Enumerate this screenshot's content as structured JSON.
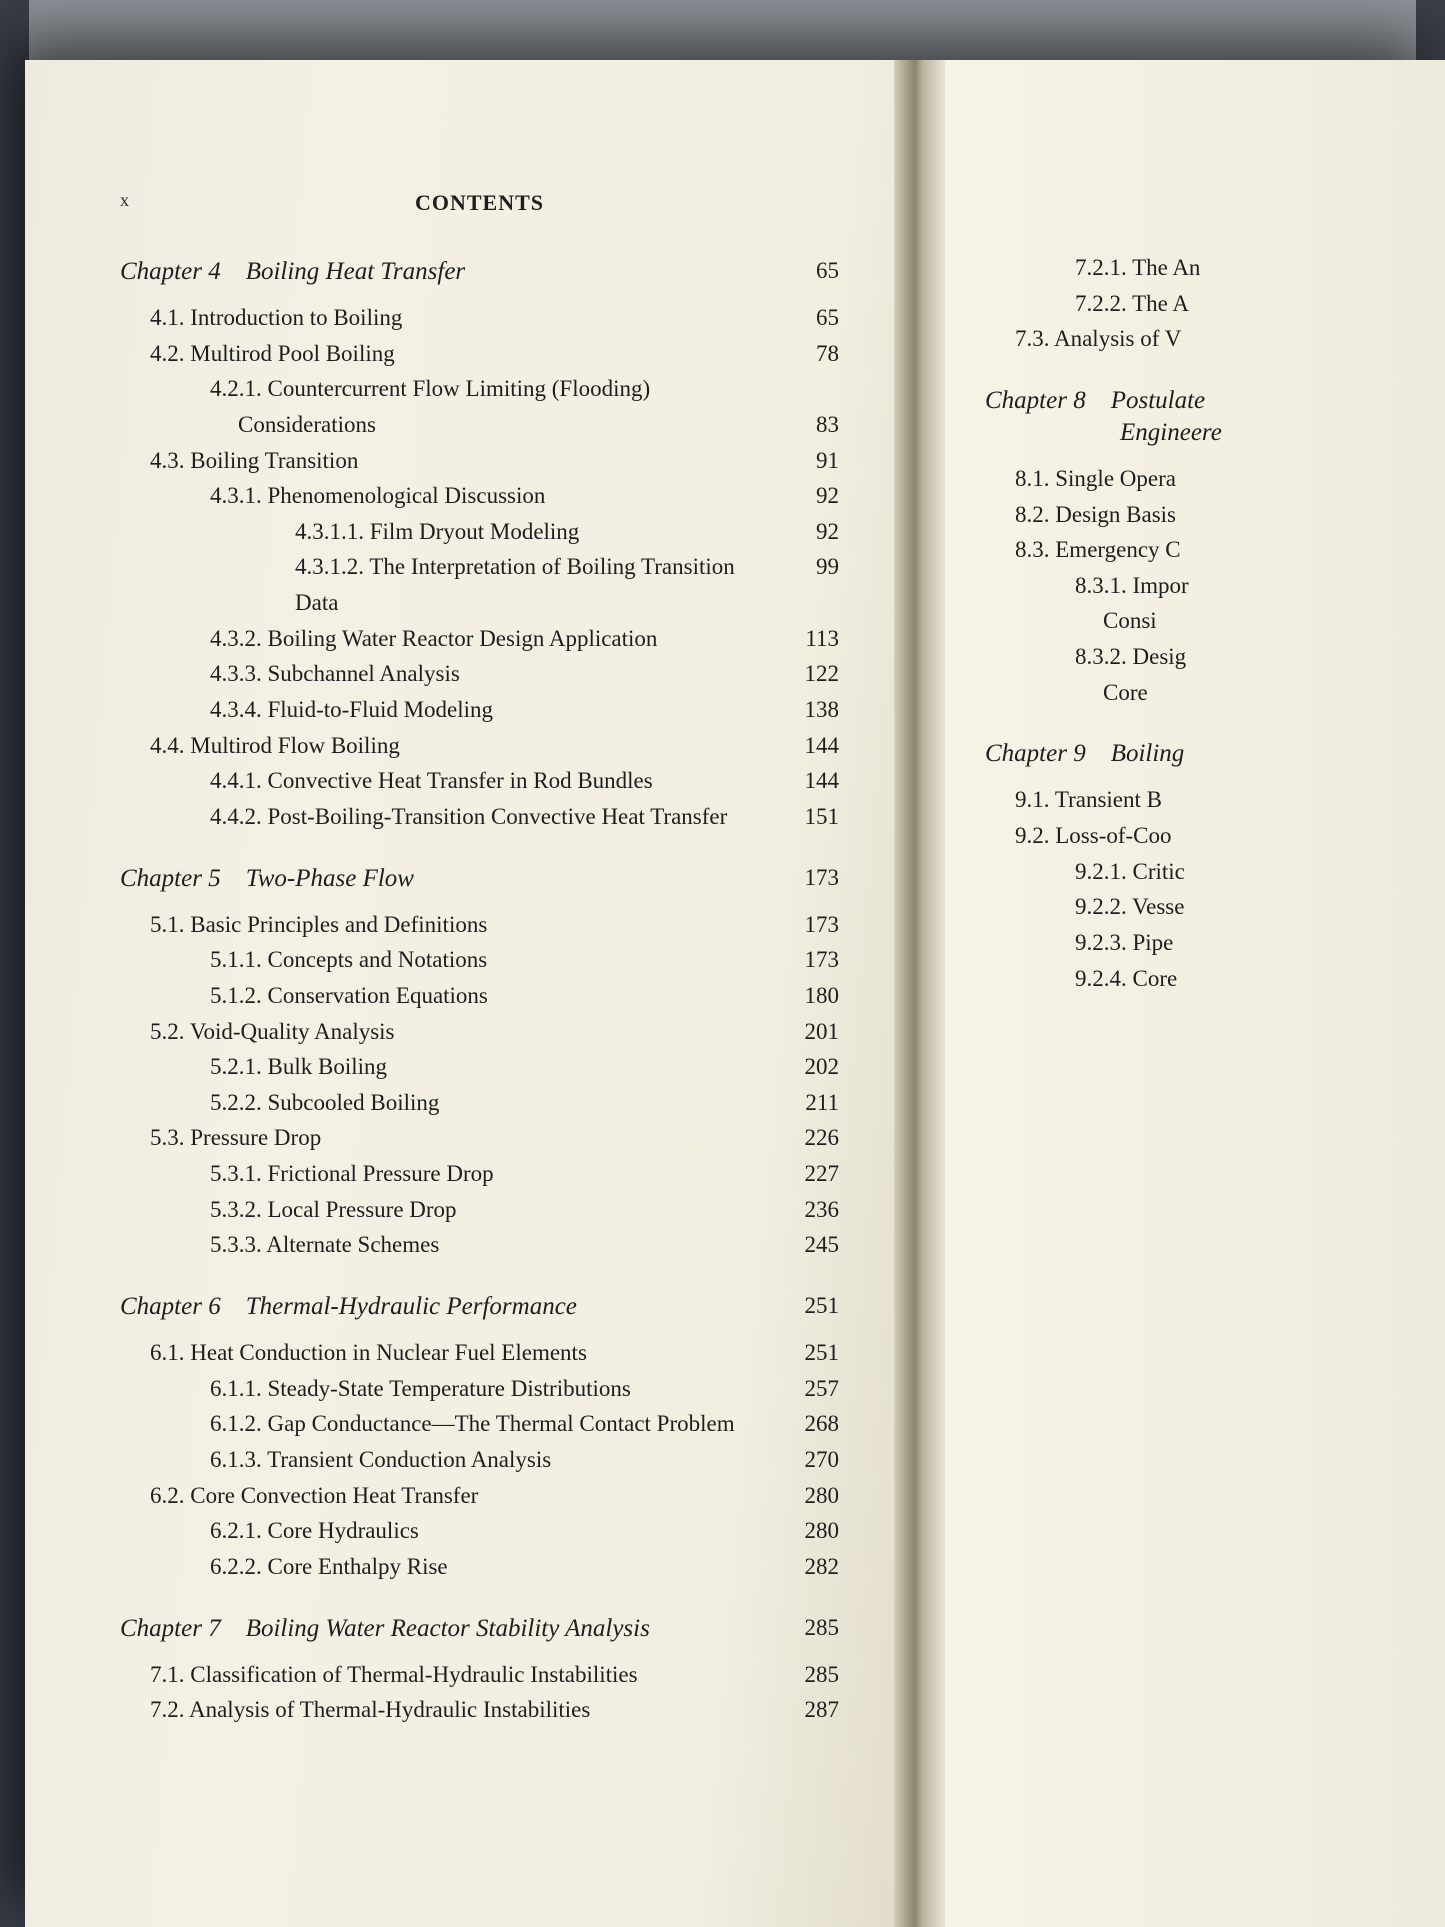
{
  "page_number_roman": "x",
  "heading": "CONTENTS",
  "font_family": "Times New Roman serif",
  "colors": {
    "paper": "#f2efe1",
    "ink": "#1e1e1e",
    "gutter_shadow": "#8a836d",
    "backdrop": "#5a5f68"
  },
  "left_page": {
    "chapters": [
      {
        "label": "Chapter 4",
        "title": "Boiling Heat Transfer",
        "page": "65",
        "entries": [
          {
            "lvl": 1,
            "num": "4.1.",
            "text": "Introduction to Boiling",
            "page": "65"
          },
          {
            "lvl": 1,
            "num": "4.2.",
            "text": "Multirod Pool Boiling",
            "page": "78"
          },
          {
            "lvl": 2,
            "num": "4.2.1.",
            "text": "Countercurrent Flow Limiting (Flooding)",
            "page": ""
          },
          {
            "lvl": 0,
            "cont": true,
            "text": "Considerations",
            "page": "83"
          },
          {
            "lvl": 1,
            "num": "4.3.",
            "text": "Boiling Transition",
            "page": "91"
          },
          {
            "lvl": 2,
            "num": "4.3.1.",
            "text": "Phenomenological Discussion",
            "page": "92"
          },
          {
            "lvl": 3,
            "num": "4.3.1.1.",
            "text": "Film Dryout Modeling",
            "page": "92"
          },
          {
            "lvl": 3,
            "num": "4.3.1.2.",
            "text": "The Interpretation of Boiling Transition Data",
            "page": "99"
          },
          {
            "lvl": 2,
            "num": "4.3.2.",
            "text": "Boiling Water Reactor Design Application",
            "page": "113"
          },
          {
            "lvl": 2,
            "num": "4.3.3.",
            "text": "Subchannel Analysis",
            "page": "122"
          },
          {
            "lvl": 2,
            "num": "4.3.4.",
            "text": "Fluid-to-Fluid Modeling",
            "page": "138"
          },
          {
            "lvl": 1,
            "num": "4.4.",
            "text": "Multirod Flow Boiling",
            "page": "144"
          },
          {
            "lvl": 2,
            "num": "4.4.1.",
            "text": "Convective Heat Transfer in Rod Bundles",
            "page": "144"
          },
          {
            "lvl": 2,
            "num": "4.4.2.",
            "text": "Post-Boiling-Transition Convective Heat Transfer",
            "page": "151"
          }
        ]
      },
      {
        "label": "Chapter 5",
        "title": "Two-Phase Flow",
        "page": "173",
        "entries": [
          {
            "lvl": 1,
            "num": "5.1.",
            "text": "Basic Principles and Definitions",
            "page": "173"
          },
          {
            "lvl": 2,
            "num": "5.1.1.",
            "text": "Concepts and Notations",
            "page": "173"
          },
          {
            "lvl": 2,
            "num": "5.1.2.",
            "text": "Conservation Equations",
            "page": "180"
          },
          {
            "lvl": 1,
            "num": "5.2.",
            "text": "Void-Quality Analysis",
            "page": "201"
          },
          {
            "lvl": 2,
            "num": "5.2.1.",
            "text": "Bulk Boiling",
            "page": "202"
          },
          {
            "lvl": 2,
            "num": "5.2.2.",
            "text": "Subcooled Boiling",
            "page": "211"
          },
          {
            "lvl": 1,
            "num": "5.3.",
            "text": "Pressure Drop",
            "page": "226"
          },
          {
            "lvl": 2,
            "num": "5.3.1.",
            "text": "Frictional Pressure Drop",
            "page": "227"
          },
          {
            "lvl": 2,
            "num": "5.3.2.",
            "text": "Local Pressure Drop",
            "page": "236"
          },
          {
            "lvl": 2,
            "num": "5.3.3.",
            "text": "Alternate Schemes",
            "page": "245"
          }
        ]
      },
      {
        "label": "Chapter 6",
        "title": "Thermal-Hydraulic Performance",
        "page": "251",
        "entries": [
          {
            "lvl": 1,
            "num": "6.1.",
            "text": "Heat Conduction in Nuclear Fuel Elements",
            "page": "251"
          },
          {
            "lvl": 2,
            "num": "6.1.1.",
            "text": "Steady-State Temperature Distributions",
            "page": "257"
          },
          {
            "lvl": 2,
            "num": "6.1.2.",
            "text": "Gap Conductance—The Thermal Contact Problem",
            "page": "268"
          },
          {
            "lvl": 2,
            "num": "6.1.3.",
            "text": "Transient Conduction Analysis",
            "page": "270"
          },
          {
            "lvl": 1,
            "num": "6.2.",
            "text": "Core Convection Heat Transfer",
            "page": "280"
          },
          {
            "lvl": 2,
            "num": "6.2.1.",
            "text": "Core Hydraulics",
            "page": "280"
          },
          {
            "lvl": 2,
            "num": "6.2.2.",
            "text": "Core Enthalpy Rise",
            "page": "282"
          }
        ]
      },
      {
        "label": "Chapter 7",
        "title": "Boiling Water Reactor Stability Analysis",
        "page": "285",
        "entries": [
          {
            "lvl": 1,
            "num": "7.1.",
            "text": "Classification of Thermal-Hydraulic Instabilities",
            "page": "285"
          },
          {
            "lvl": 1,
            "num": "7.2.",
            "text": "Analysis of Thermal-Hydraulic Instabilities",
            "page": "287"
          }
        ]
      }
    ]
  },
  "right_page": {
    "fragments_top": [
      {
        "lvl": 2,
        "num": "7.2.1.",
        "text": "The An"
      },
      {
        "lvl": 2,
        "num": "7.2.2.",
        "text": "The A"
      },
      {
        "lvl": 1,
        "num": "7.3.",
        "text": "Analysis of V"
      }
    ],
    "chapters": [
      {
        "label": "Chapter 8",
        "title": "Postulate",
        "subtitle": "Engineere",
        "entries": [
          {
            "lvl": 1,
            "num": "8.1.",
            "text": "Single Opera"
          },
          {
            "lvl": 1,
            "num": "8.2.",
            "text": "Design Basis"
          },
          {
            "lvl": 1,
            "num": "8.3.",
            "text": "Emergency C"
          },
          {
            "lvl": 2,
            "num": "8.3.1.",
            "text": "Impor"
          },
          {
            "lvl": 0,
            "cont": true,
            "text": "Consi"
          },
          {
            "lvl": 2,
            "num": "8.3.2.",
            "text": "Desig"
          },
          {
            "lvl": 0,
            "cont": true,
            "text": "Core"
          }
        ]
      },
      {
        "label": "Chapter 9",
        "title": "Boiling",
        "entries": [
          {
            "lvl": 1,
            "num": "9.1.",
            "text": "Transient B"
          },
          {
            "lvl": 1,
            "num": "9.2.",
            "text": "Loss-of-Coo"
          },
          {
            "lvl": 2,
            "num": "9.2.1.",
            "text": "Critic"
          },
          {
            "lvl": 2,
            "num": "9.2.2.",
            "text": "Vesse"
          },
          {
            "lvl": 2,
            "num": "9.2.3.",
            "text": "Pipe"
          },
          {
            "lvl": 2,
            "num": "9.2.4.",
            "text": "Core"
          }
        ]
      }
    ]
  }
}
